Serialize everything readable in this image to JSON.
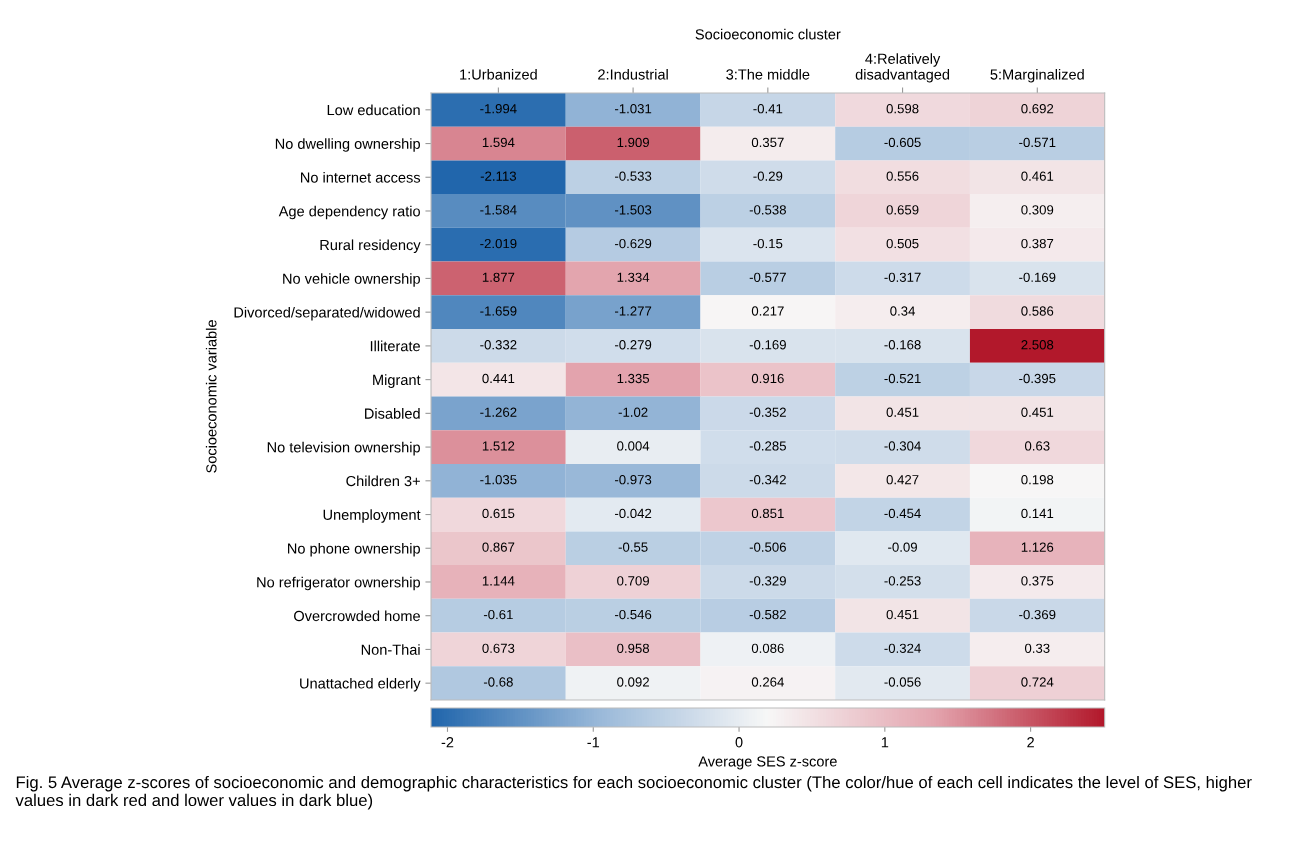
{
  "chart_data": {
    "type": "heatmap",
    "xlabel": "Socioeconomic cluster",
    "ylabel": "Socioeconomic variable",
    "clabel": "Average SES z-score",
    "categories": [
      "1:Urbanized",
      "2:Industrial",
      "3:The middle",
      "4:Relatively\ndisadvantaged",
      "5:Marginalized"
    ],
    "y_categories": [
      "Low education",
      "No dwelling ownership",
      "No internet access",
      "Age dependency ratio",
      "Rural residency",
      "No vehicle ownership",
      "Divorced/separated/widowed",
      "Illiterate",
      "Migrant",
      "Disabled",
      "No television ownership",
      "Children 3+",
      "Unemployment",
      "No phone ownership",
      "No refrigerator ownership",
      "Overcrowded home",
      "Non-Thai",
      "Unattached elderly"
    ],
    "cells": [
      [
        -1.994,
        -1.031,
        -0.41,
        0.598,
        0.692
      ],
      [
        1.594,
        1.909,
        0.357,
        -0.605,
        -0.571
      ],
      [
        -2.113,
        -0.533,
        -0.29,
        0.556,
        0.461
      ],
      [
        -1.584,
        -1.503,
        -0.538,
        0.659,
        0.309
      ],
      [
        -2.019,
        -0.629,
        -0.15,
        0.505,
        0.387
      ],
      [
        1.877,
        1.334,
        -0.577,
        -0.317,
        -0.169
      ],
      [
        -1.659,
        -1.277,
        0.217,
        0.34,
        0.586
      ],
      [
        -0.332,
        -0.279,
        -0.169,
        -0.168,
        2.508
      ],
      [
        0.441,
        1.335,
        0.916,
        -0.521,
        -0.395
      ],
      [
        -1.262,
        -1.02,
        -0.352,
        0.451,
        0.451
      ],
      [
        1.512,
        0.004,
        -0.285,
        -0.304,
        0.63
      ],
      [
        -1.035,
        -0.973,
        -0.342,
        0.427,
        0.198
      ],
      [
        0.615,
        -0.042,
        0.851,
        -0.454,
        0.141
      ],
      [
        0.867,
        -0.55,
        -0.506,
        -0.09,
        1.126
      ],
      [
        1.144,
        0.709,
        -0.329,
        -0.253,
        0.375
      ],
      [
        -0.61,
        -0.546,
        -0.582,
        0.451,
        -0.369
      ],
      [
        0.673,
        0.958,
        0.086,
        -0.324,
        0.33
      ],
      [
        -0.68,
        0.092,
        0.264,
        -0.056,
        0.724
      ]
    ],
    "data_labels": true,
    "clim": [
      -2.113,
      2.508
    ],
    "cticks": [
      -2,
      -1,
      0,
      1,
      2
    ],
    "annotations": [
      "Fig. 5 Average z-scores of socioeconomic and demographic characteristics for each socioeconomic cluster (The color/hue of each cell indicates the level of SES, higher values in dark red and lower values in dark blue)"
    ]
  }
}
